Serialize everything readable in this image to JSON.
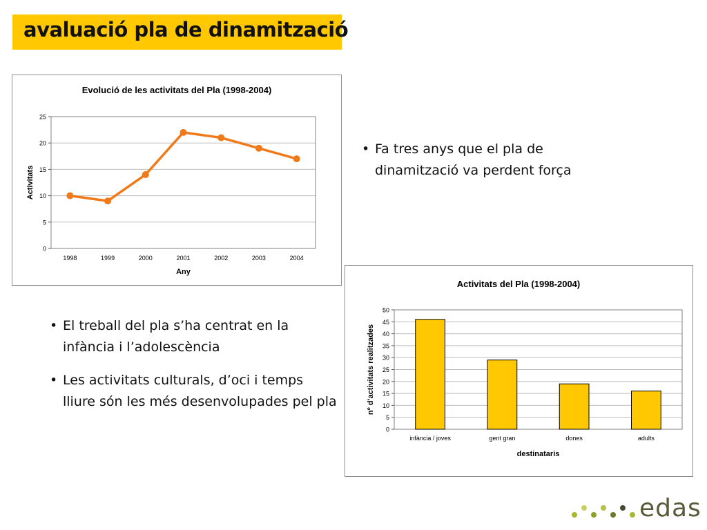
{
  "slide": {
    "title": "avaluació pla de dinamització",
    "bullets_top": [
      "Fa tres anys que el pla de dinamització va perdent força"
    ],
    "bullets_left": [
      "El treball del pla s’ha centrat en la infància i l’adolescència",
      "Les activitats culturals, d’oci i temps lliure són les més desenvolupades pel pla"
    ],
    "logo_text": "edas",
    "colors": {
      "title_bg": "#ffc800",
      "line": "#f07a1a",
      "bar": "#ffc800",
      "logo_dots": [
        "#a8b832",
        "#c8d060",
        "#8ca028",
        "#b4c04a",
        "#6e7a2a",
        "#4a4a30"
      ]
    }
  },
  "chart_data": [
    {
      "type": "line",
      "title": "Evolució de les activitats del Pla (1998-2004)",
      "xlabel": "Any",
      "ylabel": "Activitats",
      "categories": [
        "1998",
        "1999",
        "2000",
        "2001",
        "2002",
        "2003",
        "2004"
      ],
      "values": [
        10,
        9,
        14,
        22,
        21,
        19,
        17
      ],
      "ylim": [
        0,
        25
      ],
      "yticks": [
        0,
        5,
        10,
        15,
        20,
        25
      ],
      "grid": true,
      "color": "#f07a1a"
    },
    {
      "type": "bar",
      "title": "Activitats del Pla (1998-2004)",
      "xlabel": "destinataris",
      "ylabel": "nº d’activitats realitzades",
      "categories": [
        "infància / joves",
        "gent gran",
        "dones",
        "adults"
      ],
      "values": [
        46,
        29,
        19,
        16
      ],
      "ylim": [
        0,
        50
      ],
      "yticks": [
        0,
        5,
        10,
        15,
        20,
        25,
        30,
        35,
        40,
        45,
        50
      ],
      "grid": true,
      "color": "#ffc800"
    }
  ]
}
